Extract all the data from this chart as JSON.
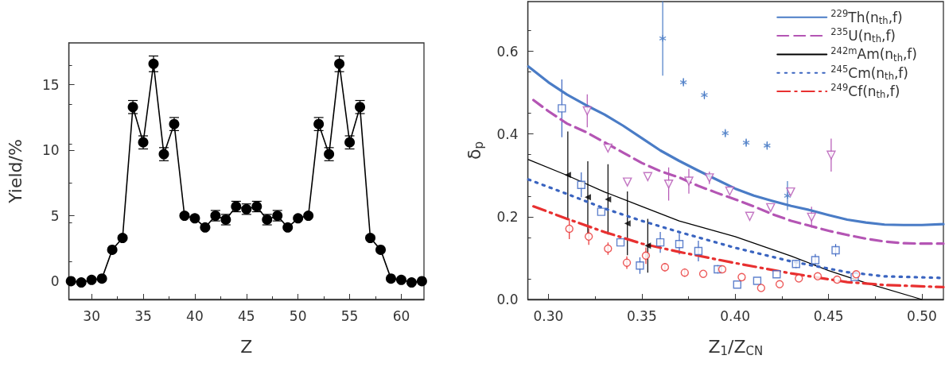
{
  "chart_data": [
    {
      "type": "line",
      "xlabel": "Z",
      "ylabel": "Yield/%",
      "xlim": [
        27.8,
        62.2
      ],
      "ylim": [
        -1.4,
        18.2
      ],
      "xticks": [
        30,
        35,
        40,
        45,
        50,
        55,
        60
      ],
      "yticks": [
        0,
        5,
        10,
        15
      ],
      "grid": false,
      "legend": false,
      "marker": "circle",
      "line_style": "solid",
      "color": "#000000",
      "x": [
        28,
        29,
        30,
        31,
        32,
        33,
        34,
        35,
        36,
        37,
        38,
        39,
        40,
        41,
        42,
        43,
        44,
        45,
        46,
        47,
        48,
        49,
        50,
        51,
        52,
        53,
        54,
        55,
        56,
        57,
        58,
        59,
        60,
        61,
        62
      ],
      "values": [
        0,
        -0.1,
        0.1,
        0.2,
        2.4,
        3.3,
        13.3,
        10.6,
        16.6,
        9.7,
        12.0,
        5.0,
        4.8,
        4.1,
        5.0,
        4.7,
        5.7,
        5.5,
        5.7,
        4.7,
        5.0,
        4.1,
        4.8,
        5.0,
        12.0,
        9.7,
        16.6,
        10.6,
        13.3,
        3.3,
        2.4,
        0.2,
        0.1,
        -0.1,
        0
      ],
      "errors": [
        null,
        null,
        null,
        null,
        null,
        null,
        0.5,
        0.5,
        0.6,
        0.5,
        0.5,
        null,
        null,
        null,
        0.4,
        0.4,
        0.4,
        0.4,
        0.4,
        0.4,
        0.4,
        null,
        null,
        null,
        0.5,
        0.5,
        0.6,
        0.5,
        0.5,
        null,
        null,
        null,
        null,
        null,
        null
      ]
    },
    {
      "type": "line",
      "xlabel": "Z$_{1}$/Z$_{CN}$",
      "ylabel": "δ$_{p}$",
      "xlim": [
        0.289,
        0.5115
      ],
      "ylim": [
        0,
        0.72
      ],
      "xticks": [
        {
          "value": 0.3,
          "label": "0.30"
        },
        0.35,
        {
          "value": 0.4,
          "label": "0.40"
        },
        0.45,
        {
          "value": 0.5,
          "label": "0.50"
        }
      ],
      "yticks": [
        {
          "value": 0,
          "label": "0.0"
        },
        0.2,
        0.4,
        0.6
      ],
      "grid": false,
      "legend": "top right",
      "series": [
        {
          "name": "$^{229}$Th(n$_{th}$,f)",
          "color": "#4a7cc6",
          "line_style": "solid",
          "marker": "none",
          "x": [
            0.2893,
            0.3,
            0.31,
            0.32,
            0.33,
            0.34,
            0.35,
            0.36,
            0.37,
            0.38,
            0.39,
            0.4,
            0.41,
            0.42,
            0.43,
            0.44,
            0.45,
            0.46,
            0.47,
            0.48,
            0.49,
            0.5,
            0.5115
          ],
          "values": [
            0.563,
            0.525,
            0.495,
            0.47,
            0.447,
            0.42,
            0.39,
            0.36,
            0.335,
            0.312,
            0.29,
            0.268,
            0.251,
            0.238,
            0.226,
            0.216,
            0.204,
            0.193,
            0.186,
            0.181,
            0.18,
            0.18,
            0.182
          ]
        },
        {
          "name": "$^{235}$U(n$_{th}$,f)",
          "color": "#b455b4",
          "line_style": "dashed",
          "marker": "none",
          "x": [
            0.292,
            0.3,
            0.31,
            0.32,
            0.33,
            0.34,
            0.35,
            0.36,
            0.37,
            0.38,
            0.39,
            0.4,
            0.41,
            0.42,
            0.43,
            0.44,
            0.45,
            0.46,
            0.47,
            0.48,
            0.49,
            0.5,
            0.5115
          ],
          "values": [
            0.482,
            0.455,
            0.425,
            0.405,
            0.38,
            0.355,
            0.33,
            0.31,
            0.295,
            0.275,
            0.258,
            0.242,
            0.225,
            0.206,
            0.19,
            0.178,
            0.166,
            0.156,
            0.147,
            0.14,
            0.136,
            0.135,
            0.135
          ]
        },
        {
          "name": "$^{242m}$Am(n$_{th}$,f)",
          "color": "#000000",
          "line_style": "solid",
          "marker": "none",
          "x": [
            0.2893,
            0.31,
            0.33,
            0.35,
            0.37,
            0.4,
            0.43,
            0.45,
            0.47,
            0.5
          ],
          "values": [
            0.338,
            0.3,
            0.26,
            0.225,
            0.19,
            0.152,
            0.105,
            0.07,
            0.04,
            0.0
          ]
        },
        {
          "name": "$^{245}$Cm(n$_{th}$,f)",
          "color": "#3a64c0",
          "line_style": "dotted",
          "marker": "none",
          "x": [
            0.2893,
            0.31,
            0.33,
            0.35,
            0.37,
            0.4,
            0.43,
            0.46,
            0.48,
            0.5115
          ],
          "values": [
            0.29,
            0.255,
            0.22,
            0.19,
            0.163,
            0.125,
            0.092,
            0.066,
            0.056,
            0.052
          ]
        },
        {
          "name": "$^{249}$Cf(n$_{th}$,f)",
          "color": "#e83030",
          "line_style": "dashdot",
          "marker": "none",
          "x": [
            0.292,
            0.31,
            0.33,
            0.35,
            0.37,
            0.4,
            0.43,
            0.46,
            0.48,
            0.5115
          ],
          "values": [
            0.225,
            0.195,
            0.163,
            0.135,
            0.115,
            0.088,
            0.063,
            0.042,
            0.035,
            0.03
          ]
        },
        {
          "type": "scatter",
          "color": "#4a7cc6",
          "marker": "cross",
          "x": [
            0.3612,
            0.3723,
            0.3835,
            0.3947,
            0.4059,
            0.4171,
            0.428
          ],
          "values": [
            0.631,
            0.525,
            0.494,
            0.402,
            0.379,
            0.372,
            0.251
          ],
          "errors": [
            0.09,
            0.01,
            0.01,
            0.01,
            0.01,
            0.01,
            0.035
          ]
        },
        {
          "type": "scatter",
          "color": "#b455b4",
          "marker": "triangle-down",
          "x": [
            0.3208,
            0.3319,
            0.3423,
            0.3532,
            0.3644,
            0.3752,
            0.3862,
            0.3971,
            0.4078,
            0.419,
            0.4297,
            0.4409,
            0.4514
          ],
          "values": [
            0.456,
            0.366,
            0.284,
            0.297,
            0.279,
            0.286,
            0.294,
            0.262,
            0.201,
            0.222,
            0.26,
            0.199,
            0.349
          ],
          "errors": [
            0.04,
            null,
            null,
            null,
            0.04,
            0.03,
            0.015,
            null,
            null,
            null,
            null,
            0.025,
            0.04
          ]
        },
        {
          "type": "scatter",
          "color": "#3a64c0",
          "marker": "square",
          "x": [
            0.3072,
            0.3176,
            0.3283,
            0.3386,
            0.349,
            0.3599,
            0.3701,
            0.3803,
            0.3907,
            0.4011,
            0.4118,
            0.4222,
            0.4326,
            0.4429,
            0.4538,
            0.464
          ],
          "values": [
            0.462,
            0.277,
            0.212,
            0.138,
            0.082,
            0.138,
            0.134,
            0.117,
            0.073,
            0.036,
            0.045,
            0.061,
            0.086,
            0.095,
            0.119,
            0.054
          ],
          "errors": [
            0.07,
            0.03,
            null,
            null,
            0.02,
            0.025,
            0.025,
            0.025,
            0.01,
            null,
            null,
            null,
            0.01,
            0.015,
            0.015,
            null
          ]
        },
        {
          "type": "scatter",
          "color": "#e83030",
          "marker": "circle",
          "x": [
            0.3112,
            0.3216,
            0.3319,
            0.342,
            0.3522,
            0.3624,
            0.373,
            0.3829,
            0.3931,
            0.4035,
            0.4139,
            0.4238,
            0.4341,
            0.4442,
            0.4546,
            0.4648
          ],
          "values": [
            0.171,
            0.152,
            0.123,
            0.089,
            0.106,
            0.078,
            0.065,
            0.062,
            0.073,
            0.054,
            0.028,
            0.037,
            0.051,
            0.056,
            0.048,
            0.061
          ],
          "errors": [
            0.025,
            0.02,
            0.015,
            0.015,
            0.02,
            0.01,
            0.01,
            null,
            null,
            null,
            null,
            null,
            null,
            null,
            null,
            null
          ]
        },
        {
          "type": "scatter",
          "color": "#000000",
          "marker": "triangle-left",
          "x": [
            0.3104,
            0.3211,
            0.3319,
            0.3423,
            0.3532
          ],
          "values": [
            0.301,
            0.247,
            0.242,
            0.184,
            0.13
          ],
          "errors": [
            0.105,
            0.087,
            0.085,
            0.077,
            0.065
          ]
        }
      ]
    }
  ]
}
